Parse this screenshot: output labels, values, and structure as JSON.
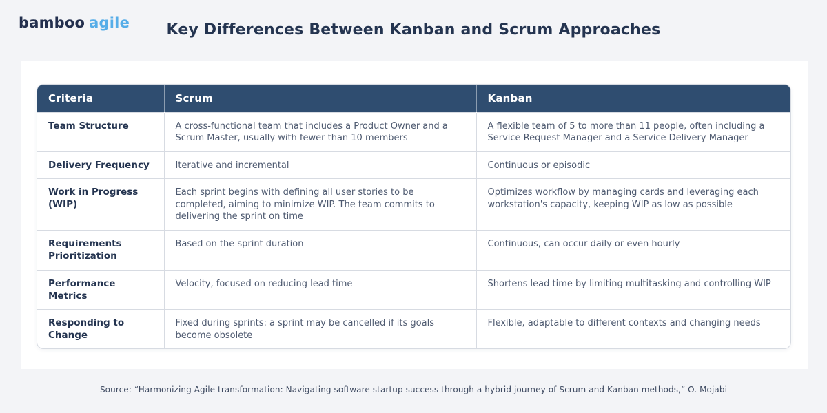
{
  "logo": {
    "part1": "bamboo",
    "part2": "agile"
  },
  "title": "Key Differences Between Kanban and Scrum Approaches",
  "table": {
    "columns": {
      "criteria": "Criteria",
      "scrum": "Scrum",
      "kanban": "Kanban"
    },
    "rows": [
      {
        "criteria": "Team Structure",
        "scrum": "A cross-functional team that includes a Product Owner and a Scrum Master, usually with fewer than 10 members",
        "kanban": "A flexible team of 5 to more than 11 people, often including a Service Request Manager and a Service Delivery Manager"
      },
      {
        "criteria": "Delivery Frequency",
        "scrum": "Iterative and incremental",
        "kanban": "Continuous or episodic"
      },
      {
        "criteria": "Work in Progress (WIP)",
        "scrum": "Each sprint begins with defining all user stories to be completed, aiming to minimize WIP. The team commits to delivering the sprint on time",
        "kanban": "Optimizes workflow by managing cards and leveraging each workstation's capacity, keeping WIP as low as possible"
      },
      {
        "criteria": "Requirements Prioritization",
        "scrum": "Based on the sprint duration",
        "kanban": "Continuous, can occur daily or even hourly"
      },
      {
        "criteria": "Performance Metrics",
        "scrum": "Velocity, focused on reducing lead time",
        "kanban": "Shortens lead time by limiting multitasking and controlling WIP"
      },
      {
        "criteria": "Responding to Change",
        "scrum": "Fixed during sprints: a sprint may be cancelled if its goals become obsolete",
        "kanban": "Flexible, adaptable to different contexts and changing needs"
      }
    ]
  },
  "footer": {
    "source": "Source: “Harmonizing Agile transformation: Navigating software startup success through a hybrid journey of Scrum and Kanban methods,” O. Mojabi"
  },
  "colors": {
    "header_bg": "#2f4d70",
    "logo_dark": "#232f4e",
    "logo_blue": "#56ade8",
    "title_text": "#243450",
    "body_text": "#4e5a70",
    "border": "#d7dbe2",
    "page_bg": "#f3f4f7",
    "card_bg": "#ffffff"
  }
}
